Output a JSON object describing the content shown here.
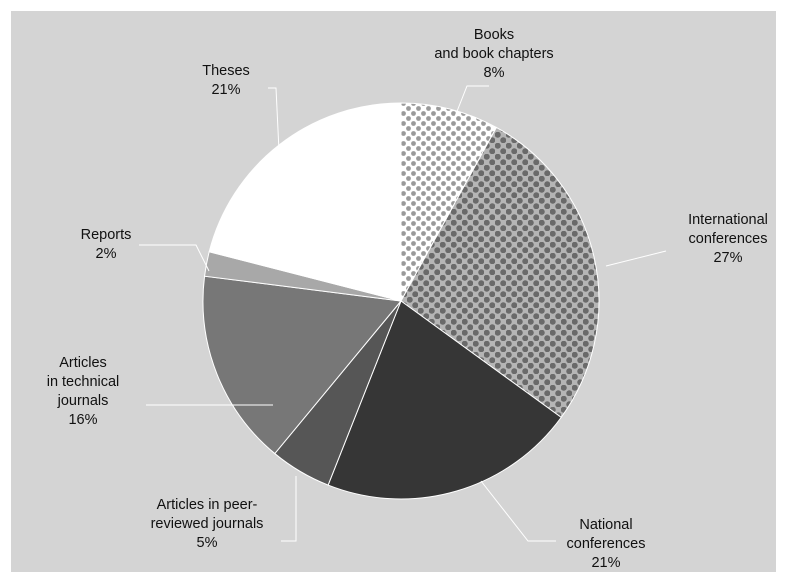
{
  "chart_data": {
    "type": "pie",
    "title": "",
    "background_color": "#d4d4d4",
    "slices": [
      {
        "id": "books",
        "lines": [
          "Books",
          "and book chapters"
        ],
        "percent_label": "8%",
        "value": 8,
        "color": "#ffffff",
        "pattern": "dots-light"
      },
      {
        "id": "international",
        "lines": [
          "International",
          "conferences"
        ],
        "percent_label": "27%",
        "value": 27,
        "color": "#b5b5b5",
        "pattern": "dots-dark"
      },
      {
        "id": "national",
        "lines": [
          "National",
          "conferences"
        ],
        "percent_label": "21%",
        "value": 21,
        "color": "#363636"
      },
      {
        "id": "peer-reviewed",
        "lines": [
          "Articles in peer-",
          "reviewed journals"
        ],
        "percent_label": "5%",
        "value": 5,
        "color": "#565656"
      },
      {
        "id": "technical",
        "lines": [
          "Articles",
          "in technical",
          "journals"
        ],
        "percent_label": "16%",
        "value": 16,
        "color": "#777777"
      },
      {
        "id": "reports",
        "lines": [
          "Reports"
        ],
        "percent_label": "2%",
        "value": 2,
        "color": "#a8a8a8"
      },
      {
        "id": "theses",
        "lines": [
          "Theses"
        ],
        "percent_label": "21%",
        "value": 21,
        "color": "#ffffff"
      }
    ]
  }
}
